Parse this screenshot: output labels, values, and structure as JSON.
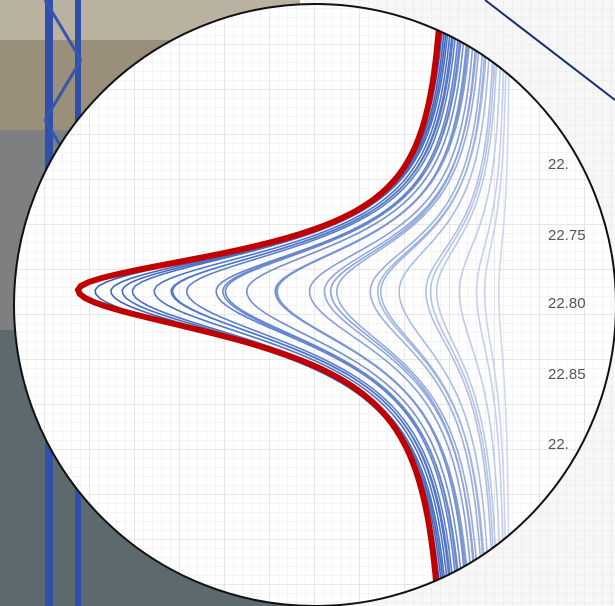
{
  "axis_labels": [
    "22.",
    "22.75",
    "22.80",
    "22.85",
    "22."
  ]
}
